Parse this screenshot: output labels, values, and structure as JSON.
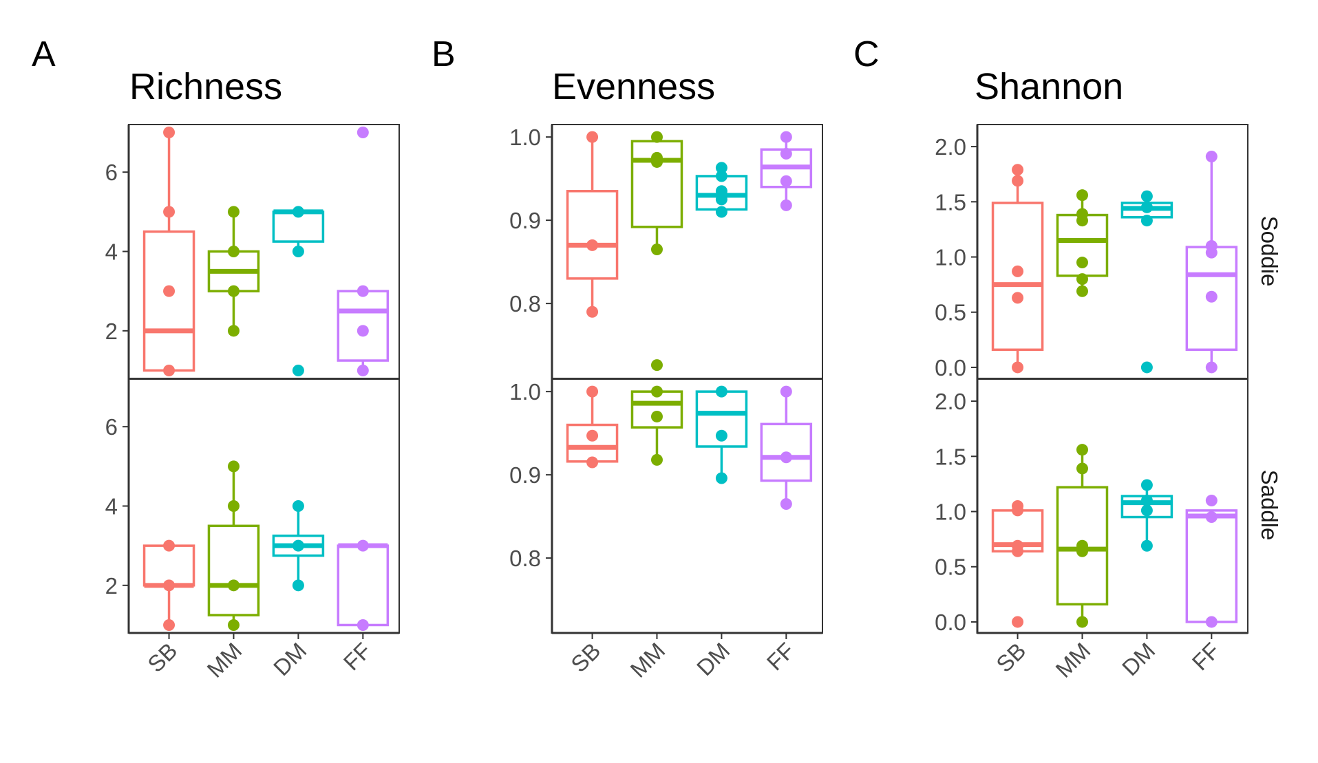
{
  "figure": {
    "groups": [
      "SB",
      "MM",
      "DM",
      "FF"
    ],
    "facets": [
      "Soddie",
      "Saddle"
    ],
    "colors": {
      "SB": "#F8766D",
      "MM": "#7CAE00",
      "DM": "#00BFC4",
      "FF": "#C77CFF"
    }
  },
  "chart_data": [
    {
      "type": "box",
      "panel_label": "A",
      "title": "Richness",
      "ylim": [
        0.8,
        7.2
      ],
      "yticks": [
        "2",
        "4",
        "6"
      ],
      "ytick_values": [
        2,
        4,
        6
      ],
      "categories": [
        "SB",
        "MM",
        "DM",
        "FF"
      ],
      "facets": [
        {
          "name": "Soddie",
          "boxes": [
            {
              "group": "SB",
              "whisker_low": 1,
              "q1": 1,
              "median": 2,
              "q3": 4.5,
              "whisker_high": 7,
              "points": [
                1,
                3,
                5,
                7
              ]
            },
            {
              "group": "MM",
              "whisker_low": 2,
              "q1": 3,
              "median": 3.5,
              "q3": 4,
              "whisker_high": 5,
              "points": [
                2,
                3,
                4,
                5
              ]
            },
            {
              "group": "DM",
              "whisker_low": 4,
              "q1": 4.25,
              "median": 5,
              "q3": 5,
              "whisker_high": 5,
              "points": [
                1,
                4,
                5
              ]
            },
            {
              "group": "FF",
              "whisker_low": 1,
              "q1": 1.25,
              "median": 2.5,
              "q3": 3,
              "whisker_high": 3,
              "points": [
                1,
                2,
                3,
                7
              ]
            }
          ]
        },
        {
          "name": "Saddle",
          "boxes": [
            {
              "group": "SB",
              "whisker_low": 1,
              "q1": 2,
              "median": 2,
              "q3": 3,
              "whisker_high": 3,
              "points": [
                1,
                2,
                3
              ]
            },
            {
              "group": "MM",
              "whisker_low": 1,
              "q1": 1.25,
              "median": 2,
              "q3": 3.5,
              "whisker_high": 5,
              "points": [
                1,
                2,
                4,
                5
              ]
            },
            {
              "group": "DM",
              "whisker_low": 2,
              "q1": 2.75,
              "median": 3,
              "q3": 3.25,
              "whisker_high": 4,
              "points": [
                2,
                3,
                4
              ]
            },
            {
              "group": "FF",
              "whisker_low": 1,
              "q1": 1,
              "median": 3,
              "q3": 3,
              "whisker_high": 3,
              "points": [
                1,
                3
              ]
            }
          ]
        }
      ]
    },
    {
      "type": "box",
      "panel_label": "B",
      "title": "Evenness",
      "ylim": [
        0.71,
        1.015
      ],
      "yticks": [
        "0.8",
        "0.9",
        "1.0"
      ],
      "ytick_values": [
        0.8,
        0.9,
        1.0
      ],
      "categories": [
        "SB",
        "MM",
        "DM",
        "FF"
      ],
      "facets": [
        {
          "name": "Soddie",
          "boxes": [
            {
              "group": "SB",
              "whisker_low": 0.79,
              "q1": 0.83,
              "median": 0.87,
              "q3": 0.935,
              "whisker_high": 1.0,
              "points": [
                0.79,
                0.87,
                1.0
              ]
            },
            {
              "group": "MM",
              "whisker_low": 0.865,
              "q1": 0.892,
              "median": 0.972,
              "q3": 0.995,
              "whisker_high": 1.0,
              "points": [
                0.726,
                0.865,
                0.97,
                0.975,
                1.0
              ]
            },
            {
              "group": "DM",
              "whisker_low": 0.91,
              "q1": 0.913,
              "median": 0.93,
              "q3": 0.953,
              "whisker_high": 0.963,
              "points": [
                0.91,
                0.925,
                0.935,
                0.953,
                0.963
              ]
            },
            {
              "group": "FF",
              "whisker_low": 0.918,
              "q1": 0.94,
              "median": 0.964,
              "q3": 0.985,
              "whisker_high": 1.0,
              "points": [
                0.918,
                0.947,
                0.98,
                1.0
              ]
            }
          ]
        },
        {
          "name": "Saddle",
          "boxes": [
            {
              "group": "SB",
              "whisker_low": 0.915,
              "q1": 0.916,
              "median": 0.933,
              "q3": 0.96,
              "whisker_high": 1.0,
              "points": [
                0.915,
                0.947,
                1.0
              ]
            },
            {
              "group": "MM",
              "whisker_low": 0.918,
              "q1": 0.957,
              "median": 0.986,
              "q3": 1.0,
              "whisker_high": 1.0,
              "points": [
                0.918,
                0.97,
                1.0
              ]
            },
            {
              "group": "DM",
              "whisker_low": 0.896,
              "q1": 0.934,
              "median": 0.974,
              "q3": 1.0,
              "whisker_high": 1.0,
              "points": [
                0.896,
                0.947,
                1.0
              ]
            },
            {
              "group": "FF",
              "whisker_low": 0.865,
              "q1": 0.893,
              "median": 0.921,
              "q3": 0.961,
              "whisker_high": 1.0,
              "points": [
                0.865,
                0.921,
                1.0
              ]
            }
          ]
        }
      ]
    },
    {
      "type": "box",
      "panel_label": "C",
      "title": "Shannon",
      "ylim": [
        -0.1,
        2.2
      ],
      "yticks": [
        "0.0",
        "0.5",
        "1.0",
        "1.5",
        "2.0"
      ],
      "ytick_values": [
        0,
        0.5,
        1.0,
        1.5,
        2.0
      ],
      "categories": [
        "SB",
        "MM",
        "DM",
        "FF"
      ],
      "facets": [
        {
          "name": "Soddie",
          "boxes": [
            {
              "group": "SB",
              "whisker_low": 0,
              "q1": 0.16,
              "median": 0.75,
              "q3": 1.49,
              "whisker_high": 1.79,
              "points": [
                0,
                0.63,
                0.87,
                1.69,
                1.79
              ]
            },
            {
              "group": "MM",
              "whisker_low": 0.69,
              "q1": 0.83,
              "median": 1.15,
              "q3": 1.38,
              "whisker_high": 1.56,
              "points": [
                0.69,
                0.8,
                0.95,
                1.33,
                1.39,
                1.56
              ]
            },
            {
              "group": "DM",
              "whisker_low": 1.33,
              "q1": 1.36,
              "median": 1.44,
              "q3": 1.49,
              "whisker_high": 1.55,
              "points": [
                0,
                1.33,
                1.45,
                1.55
              ]
            },
            {
              "group": "FF",
              "whisker_low": 0,
              "q1": 0.16,
              "median": 0.84,
              "q3": 1.09,
              "whisker_high": 1.91,
              "points": [
                0,
                0.64,
                1.04,
                1.1,
                1.91
              ]
            }
          ]
        },
        {
          "name": "Saddle",
          "boxes": [
            {
              "group": "SB",
              "whisker_low": 0.64,
              "q1": 0.64,
              "median": 0.7,
              "q3": 1.01,
              "whisker_high": 1.05,
              "points": [
                0,
                0.64,
                0.69,
                1.01,
                1.05
              ]
            },
            {
              "group": "MM",
              "whisker_low": 0,
              "q1": 0.16,
              "median": 0.66,
              "q3": 1.22,
              "whisker_high": 1.56,
              "points": [
                0,
                0.64,
                0.69,
                1.39,
                1.56
              ]
            },
            {
              "group": "DM",
              "whisker_low": 0.69,
              "q1": 0.95,
              "median": 1.08,
              "q3": 1.14,
              "whisker_high": 1.24,
              "points": [
                0.69,
                1.01,
                1.1,
                1.24
              ]
            },
            {
              "group": "FF",
              "whisker_low": 0,
              "q1": 0,
              "median": 0.96,
              "q3": 1.01,
              "whisker_high": 1.01,
              "points": [
                0,
                0.95,
                1.1
              ]
            }
          ]
        }
      ]
    }
  ]
}
